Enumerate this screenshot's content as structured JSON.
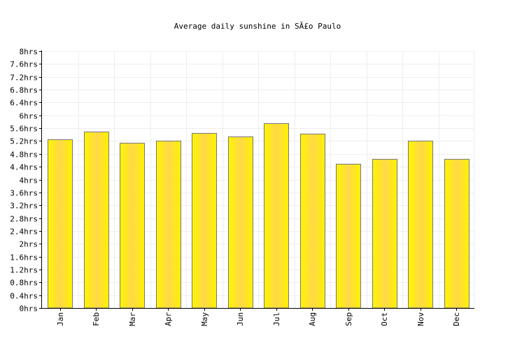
{
  "chart_data": {
    "type": "bar",
    "title": "Average daily sunshine in SÃ£o Paulo",
    "xlabel": "",
    "ylabel": "",
    "categories": [
      "Jan",
      "Feb",
      "Mar",
      "Apr",
      "May",
      "Jun",
      "Jul",
      "Aug",
      "Sep",
      "Oct",
      "Nov",
      "Dec"
    ],
    "values": [
      5.25,
      5.5,
      5.15,
      5.22,
      5.45,
      5.33,
      5.75,
      5.42,
      4.5,
      4.65,
      5.2,
      4.65
    ],
    "ylim": [
      0,
      8
    ],
    "yticks": [
      "0hrs",
      "0.4hrs",
      "0.8hrs",
      "1.2hrs",
      "1.6hrs",
      "2hrs",
      "2.4hrs",
      "2.8hrs",
      "3.2hrs",
      "3.6hrs",
      "4hrs",
      "4.4hrs",
      "4.8hrs",
      "5.2hrs",
      "5.6hrs",
      "6hrs",
      "6.4hrs",
      "6.8hrs",
      "7.2hrs",
      "7.6hrs",
      "8hrs"
    ],
    "grid": true,
    "legend": "none",
    "colors": {
      "bar_edge": "#fff200",
      "bar_center": "#ffd33a",
      "bar_border": "#777777",
      "axis": "#000000",
      "grid": "#eeeeee"
    }
  }
}
